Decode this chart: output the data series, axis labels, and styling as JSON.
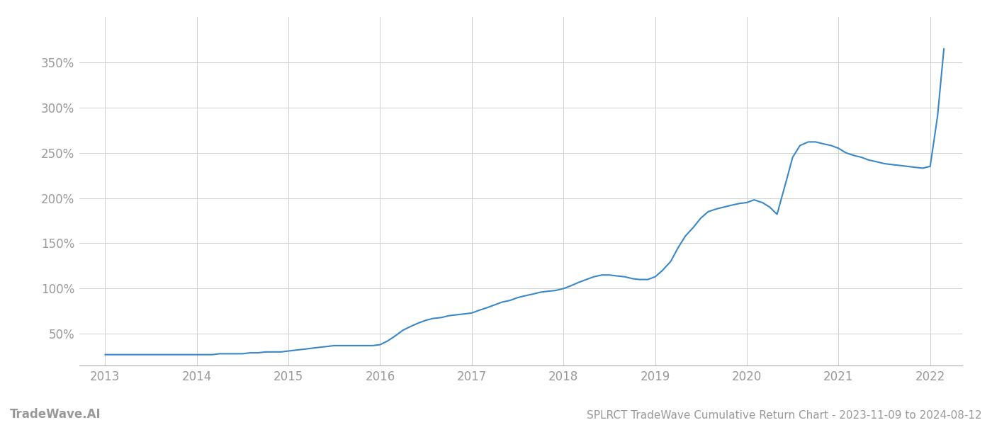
{
  "title": "SPLRCT TradeWave Cumulative Return Chart - 2023-11-09 to 2024-08-12",
  "watermark": "TradeWave.AI",
  "line_color": "#3a87c8",
  "background_color": "#ffffff",
  "grid_color": "#d0d0d0",
  "x_years": [
    2013,
    2014,
    2015,
    2016,
    2017,
    2018,
    2019,
    2020,
    2021,
    2022
  ],
  "data_x": [
    2013.0,
    2013.08,
    2013.17,
    2013.25,
    2013.33,
    2013.42,
    2013.5,
    2013.58,
    2013.67,
    2013.75,
    2013.83,
    2013.92,
    2014.0,
    2014.08,
    2014.17,
    2014.25,
    2014.33,
    2014.42,
    2014.5,
    2014.58,
    2014.67,
    2014.75,
    2014.83,
    2014.92,
    2015.0,
    2015.08,
    2015.17,
    2015.25,
    2015.33,
    2015.42,
    2015.5,
    2015.58,
    2015.67,
    2015.75,
    2015.83,
    2015.92,
    2016.0,
    2016.08,
    2016.17,
    2016.25,
    2016.33,
    2016.42,
    2016.5,
    2016.58,
    2016.67,
    2016.75,
    2016.83,
    2016.92,
    2017.0,
    2017.08,
    2017.17,
    2017.25,
    2017.33,
    2017.42,
    2017.5,
    2017.58,
    2017.67,
    2017.75,
    2017.83,
    2017.92,
    2018.0,
    2018.08,
    2018.17,
    2018.25,
    2018.33,
    2018.42,
    2018.5,
    2018.58,
    2018.67,
    2018.75,
    2018.83,
    2018.92,
    2019.0,
    2019.08,
    2019.17,
    2019.25,
    2019.33,
    2019.42,
    2019.5,
    2019.58,
    2019.67,
    2019.75,
    2019.83,
    2019.92,
    2020.0,
    2020.08,
    2020.17,
    2020.25,
    2020.33,
    2020.42,
    2020.5,
    2020.58,
    2020.67,
    2020.75,
    2020.83,
    2020.92,
    2021.0,
    2021.08,
    2021.17,
    2021.25,
    2021.33,
    2021.42,
    2021.5,
    2021.58,
    2021.67,
    2021.75,
    2021.83,
    2021.92,
    2022.0,
    2022.08,
    2022.15
  ],
  "data_y": [
    27,
    27,
    27,
    27,
    27,
    27,
    27,
    27,
    27,
    27,
    27,
    27,
    27,
    27,
    27,
    28,
    28,
    28,
    28,
    29,
    29,
    30,
    30,
    30,
    31,
    32,
    33,
    34,
    35,
    36,
    37,
    37,
    37,
    37,
    37,
    37,
    38,
    42,
    48,
    54,
    58,
    62,
    65,
    67,
    68,
    70,
    71,
    72,
    73,
    76,
    79,
    82,
    85,
    87,
    90,
    92,
    94,
    96,
    97,
    98,
    100,
    103,
    107,
    110,
    113,
    115,
    115,
    114,
    113,
    111,
    110,
    110,
    113,
    120,
    130,
    145,
    158,
    168,
    178,
    185,
    188,
    190,
    192,
    194,
    195,
    198,
    195,
    190,
    182,
    215,
    245,
    258,
    262,
    262,
    260,
    258,
    255,
    250,
    247,
    245,
    242,
    240,
    238,
    237,
    236,
    235,
    234,
    233,
    235,
    290,
    365
  ],
  "ylim": [
    15,
    400
  ],
  "yticks": [
    50,
    100,
    150,
    200,
    250,
    300,
    350
  ],
  "xlim": [
    2012.72,
    2022.35
  ],
  "title_fontsize": 11,
  "watermark_fontsize": 12,
  "tick_label_color": "#999999",
  "tick_fontsize": 12
}
